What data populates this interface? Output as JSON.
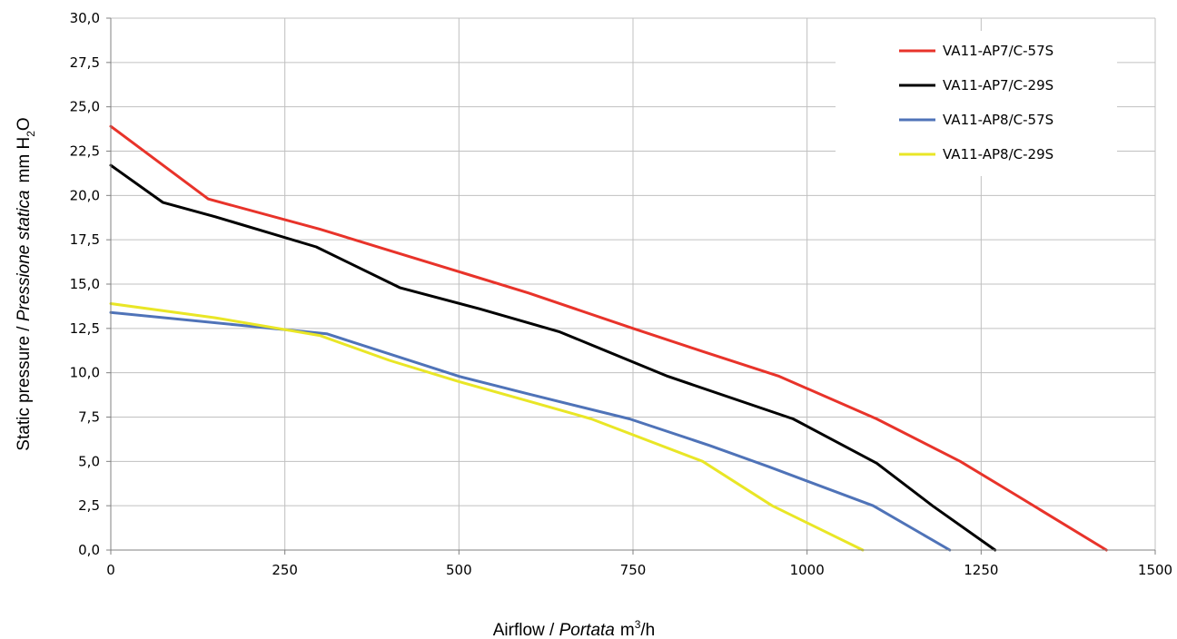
{
  "chart_data": {
    "type": "line",
    "title": "",
    "xlabel": {
      "plain": "Airflow / ",
      "italic": "Portata",
      "unit": "m",
      "unit_sup": "3",
      "unit_tail": "/h"
    },
    "ylabel": {
      "plain": "Static pressure / ",
      "italic": "Pressione statica",
      "unit": "mm H",
      "unit_sub": "2",
      "unit_tail": "O"
    },
    "xlim": [
      0,
      1500
    ],
    "ylim": [
      0,
      30
    ],
    "x_ticks": [
      "0",
      "250",
      "500",
      "750",
      "1000",
      "1250",
      "1500"
    ],
    "x_tick_values": [
      0,
      250,
      500,
      750,
      1000,
      1250,
      1500
    ],
    "y_ticks": [
      "0,0",
      "2,5",
      "5,0",
      "7,5",
      "10,0",
      "12,5",
      "15,0",
      "17,5",
      "20,0",
      "22,5",
      "25,0",
      "27,5",
      "30,0"
    ],
    "y_tick_values": [
      0,
      2.5,
      5,
      7.5,
      10,
      12.5,
      15,
      17.5,
      20,
      22.5,
      25,
      27.5,
      30
    ],
    "grid": true,
    "legend_position": "top-right",
    "series": [
      {
        "name": "VA11-AP7/C-57S",
        "color": "#e8332a",
        "points": [
          [
            0,
            23.9
          ],
          [
            140,
            19.8
          ],
          [
            300,
            18.1
          ],
          [
            400,
            16.9
          ],
          [
            500,
            15.7
          ],
          [
            600,
            14.5
          ],
          [
            750,
            12.5
          ],
          [
            850,
            11.2
          ],
          [
            960,
            9.8
          ],
          [
            1100,
            7.4
          ],
          [
            1220,
            5.0
          ],
          [
            1300,
            3.1
          ],
          [
            1430,
            0.0
          ]
        ]
      },
      {
        "name": "VA11-AP7/C-29S",
        "color": "#000000",
        "points": [
          [
            0,
            21.7
          ],
          [
            75,
            19.6
          ],
          [
            150,
            18.8
          ],
          [
            295,
            17.1
          ],
          [
            415,
            14.8
          ],
          [
            530,
            13.6
          ],
          [
            645,
            12.3
          ],
          [
            800,
            9.8
          ],
          [
            980,
            7.4
          ],
          [
            1100,
            4.9
          ],
          [
            1180,
            2.5
          ],
          [
            1270,
            0.0
          ]
        ]
      },
      {
        "name": "VA11-AP8/C-57S",
        "color": "#4f73b8",
        "points": [
          [
            0,
            13.4
          ],
          [
            180,
            12.7
          ],
          [
            310,
            12.2
          ],
          [
            500,
            9.8
          ],
          [
            600,
            8.8
          ],
          [
            745,
            7.4
          ],
          [
            860,
            5.9
          ],
          [
            945,
            4.7
          ],
          [
            1095,
            2.5
          ],
          [
            1205,
            0.0
          ]
        ]
      },
      {
        "name": "VA11-AP8/C-29S",
        "color": "#e9e626",
        "points": [
          [
            0,
            13.9
          ],
          [
            150,
            13.1
          ],
          [
            300,
            12.1
          ],
          [
            400,
            10.7
          ],
          [
            500,
            9.5
          ],
          [
            600,
            8.4
          ],
          [
            690,
            7.4
          ],
          [
            850,
            5.0
          ],
          [
            950,
            2.5
          ],
          [
            1080,
            0.0
          ]
        ]
      }
    ]
  }
}
